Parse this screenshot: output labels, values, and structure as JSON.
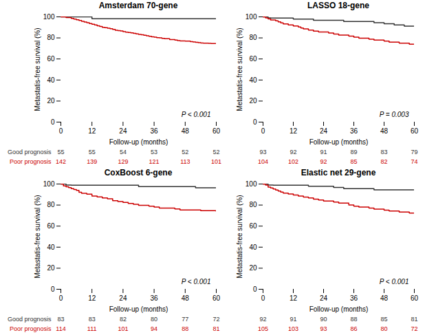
{
  "chart_data": [
    {
      "type": "step",
      "title": "Amsterdam 70-gene",
      "xlabel": "Follow-up (months)",
      "ylabel": "Metastatis-free survival (%)",
      "annotations": [
        "P < 0.001"
      ],
      "series": [
        {
          "color": "#333333",
          "x": [
            0,
            1,
            2,
            3,
            4,
            5,
            6,
            7,
            8,
            9,
            10,
            11,
            12,
            13,
            14,
            15,
            16,
            17,
            18,
            19,
            20,
            21,
            60
          ],
          "values": [
            100,
            100,
            100,
            100,
            100,
            100,
            100,
            100,
            100,
            100,
            100,
            100,
            98.2,
            98.2,
            98.2,
            98.2,
            98.2,
            98.2,
            98.2,
            98.2,
            98.2,
            98.2,
            98.2
          ]
        },
        {
          "color": "#cc0000",
          "x": [
            0,
            2,
            4,
            5,
            6,
            7,
            8,
            9,
            10,
            11,
            12,
            13,
            14,
            15,
            16,
            17,
            18,
            19,
            20,
            21,
            22,
            23,
            24,
            25,
            26,
            27,
            28,
            29,
            30,
            31,
            32,
            33,
            34,
            35,
            36,
            37,
            38,
            39,
            40,
            42,
            44,
            45,
            46,
            48,
            50,
            51,
            52,
            53,
            54,
            55,
            57,
            58,
            60
          ],
          "values": [
            100,
            99.3,
            98.6,
            97.9,
            97.2,
            96.5,
            95.8,
            95.1,
            94.4,
            93.7,
            93.0,
            92.3,
            91.5,
            90.8,
            90.1,
            89.7,
            89.2,
            88.7,
            88.0,
            87.3,
            87.0,
            86.6,
            86.0,
            85.5,
            85.2,
            84.8,
            84.3,
            83.8,
            83.3,
            83.0,
            82.5,
            82.0,
            81.5,
            81.0,
            80.8,
            80.3,
            80.0,
            79.5,
            79.3,
            78.5,
            78.0,
            77.5,
            77.2,
            76.9,
            76.5,
            76.2,
            75.8,
            75.5,
            75.2,
            75.0,
            74.8,
            74.6,
            74.6
          ]
        }
      ],
      "xlim": [
        0,
        60
      ],
      "ylim": [
        0,
        100
      ],
      "xticks": [
        0,
        12,
        24,
        36,
        48,
        60
      ],
      "yticks": [
        0,
        20,
        40,
        60,
        80,
        100
      ],
      "table": {
        "x": [
          0,
          12,
          24,
          36,
          48,
          60
        ],
        "rows": [
          {
            "label": "Good prognosis",
            "color": "#333333",
            "values": [
              55,
              55,
              54,
              53,
              52,
              52
            ]
          },
          {
            "label": "Poor prognosis",
            "color": "#cc0000",
            "values": [
              142,
              139,
              129,
              121,
              113,
              101
            ]
          }
        ]
      }
    },
    {
      "type": "step",
      "title": "LASSO 18-gene",
      "xlabel": "Follow-up (months)",
      "ylabel": "Metastatis-free survival (%)",
      "annotations": [
        "P = 0.003"
      ],
      "series": [
        {
          "color": "#333333",
          "x": [
            0,
            2,
            3,
            5,
            7,
            9,
            10,
            12,
            14,
            16,
            18,
            20,
            22,
            24,
            26,
            28,
            30,
            32,
            34,
            36,
            38,
            40,
            42,
            44,
            46,
            48,
            50,
            52,
            54,
            56,
            58,
            60
          ],
          "values": [
            100,
            99.0,
            98.9,
            98.9,
            98.9,
            98.9,
            98.9,
            97.8,
            97.8,
            97.8,
            97.8,
            96.7,
            96.7,
            96.7,
            96.7,
            96.7,
            96.7,
            95.6,
            95.6,
            95.6,
            95.6,
            95.6,
            95.6,
            94.5,
            94.5,
            93.4,
            93.4,
            92.3,
            92.3,
            91.2,
            91.2,
            91.2
          ]
        },
        {
          "color": "#cc0000",
          "x": [
            0,
            1,
            2,
            3,
            5,
            6,
            7,
            8,
            10,
            12,
            14,
            15,
            16,
            18,
            20,
            22,
            24,
            26,
            28,
            30,
            32,
            34,
            36,
            38,
            40,
            42,
            44,
            46,
            48,
            50,
            52,
            54,
            56,
            58,
            60
          ],
          "values": [
            100,
            99.0,
            98.1,
            97.1,
            96.2,
            95.2,
            94.2,
            93.3,
            92.3,
            91.3,
            90.4,
            89.4,
            88.5,
            87.5,
            86.5,
            85.6,
            85.6,
            84.6,
            83.7,
            82.7,
            82.7,
            81.7,
            80.8,
            79.8,
            79.8,
            78.8,
            77.9,
            77.9,
            76.9,
            76.0,
            76.0,
            75.0,
            75.0,
            74.0,
            74.0
          ]
        }
      ],
      "xlim": [
        0,
        60
      ],
      "ylim": [
        0,
        100
      ],
      "xticks": [
        0,
        12,
        24,
        36,
        48,
        60
      ],
      "yticks": [
        0,
        20,
        40,
        60,
        80,
        100
      ],
      "table": {
        "x": [
          0,
          12,
          24,
          36,
          48,
          60
        ],
        "rows": [
          {
            "color": "#333333",
            "values": [
              93,
              92,
              91,
              89,
              83,
              79
            ]
          },
          {
            "color": "#cc0000",
            "values": [
              104,
              102,
              92,
              85,
              82,
              74
            ]
          }
        ]
      }
    },
    {
      "type": "step",
      "title": "CoxBoost 6-gene",
      "xlabel": "Follow-up (months)",
      "ylabel": "Metastatis-free survival (%)",
      "annotations": [
        "P < 0.001"
      ],
      "series": [
        {
          "color": "#333333",
          "x": [
            0,
            2,
            4,
            6,
            8,
            10,
            12,
            14,
            16,
            18,
            20,
            22,
            24,
            26,
            28,
            30,
            32,
            34,
            36,
            38,
            40,
            42,
            44,
            46,
            48,
            50,
            52,
            54,
            56,
            58,
            60
          ],
          "values": [
            100,
            99.0,
            98.8,
            98.8,
            98.8,
            98.8,
            98.8,
            98.8,
            98.8,
            98.8,
            98.8,
            98.8,
            98.8,
            98.8,
            98.8,
            97.6,
            97.6,
            97.6,
            97.6,
            97.6,
            97.6,
            97.6,
            97.6,
            97.6,
            97.6,
            97.6,
            96.4,
            96.4,
            96.4,
            96.4,
            96.4
          ]
        },
        {
          "color": "#cc0000",
          "x": [
            0,
            1,
            2,
            3,
            4,
            5,
            6,
            7,
            8,
            10,
            12,
            14,
            16,
            18,
            20,
            22,
            24,
            26,
            28,
            30,
            32,
            34,
            36,
            38,
            40,
            42,
            44,
            46,
            48,
            50,
            52,
            54,
            56,
            58,
            60
          ],
          "values": [
            100,
            98.2,
            97.4,
            96.5,
            95.6,
            94.7,
            93.9,
            92.1,
            91.2,
            90.4,
            88.6,
            87.7,
            86.8,
            86.0,
            84.2,
            83.3,
            82.5,
            81.6,
            80.7,
            79.8,
            79.8,
            78.9,
            78.1,
            77.2,
            77.2,
            77.2,
            76.3,
            75.4,
            75.4,
            75.4,
            75.4,
            74.6,
            74.6,
            74.6,
            73.7
          ]
        }
      ],
      "xlim": [
        0,
        60
      ],
      "ylim": [
        0,
        100
      ],
      "xticks": [
        0,
        12,
        24,
        36,
        48,
        60
      ],
      "yticks": [
        0,
        20,
        40,
        60,
        80,
        100
      ],
      "table": {
        "x": [
          0,
          12,
          24,
          36,
          48,
          60
        ],
        "rows": [
          {
            "label": "Good prognosis",
            "color": "#333333",
            "values": [
              83,
              83,
              82,
              80,
              77,
              72
            ]
          },
          {
            "label": "Poor prognosis",
            "color": "#cc0000",
            "values": [
              114,
              111,
              101,
              94,
              88,
              81
            ]
          }
        ]
      }
    },
    {
      "type": "step",
      "title": "Elastic net 29-gene",
      "xlabel": "Follow-up (months)",
      "ylabel": "Metastatis-free survival (%)",
      "annotations": [
        "P < 0.001"
      ],
      "series": [
        {
          "color": "#333333",
          "x": [
            0,
            2,
            4,
            6,
            8,
            10,
            12,
            14,
            16,
            18,
            20,
            22,
            24,
            26,
            28,
            30,
            32,
            34,
            36,
            38,
            40,
            42,
            44,
            46,
            48,
            50,
            52,
            54,
            56,
            58,
            60
          ],
          "values": [
            100,
            99.0,
            98.9,
            98.9,
            98.9,
            98.9,
            98.9,
            98.9,
            98.9,
            97.8,
            97.8,
            97.8,
            97.8,
            97.8,
            96.7,
            96.7,
            95.6,
            95.6,
            95.6,
            95.6,
            95.6,
            95.6,
            94.5,
            94.5,
            94.5,
            94.5,
            94.5,
            94.5,
            94.5,
            94.5,
            94.5
          ]
        },
        {
          "color": "#cc0000",
          "x": [
            0,
            1,
            2,
            3,
            4,
            5,
            6,
            7,
            8,
            10,
            12,
            14,
            16,
            18,
            20,
            22,
            24,
            26,
            28,
            30,
            32,
            34,
            36,
            38,
            40,
            42,
            44,
            46,
            48,
            50,
            52,
            54,
            56,
            58,
            60
          ],
          "values": [
            100,
            99.0,
            97.1,
            96.2,
            95.2,
            94.3,
            93.3,
            92.4,
            91.4,
            90.5,
            89.5,
            88.6,
            87.6,
            86.7,
            85.7,
            84.8,
            83.8,
            83.8,
            82.9,
            81.9,
            81.9,
            80.0,
            79.0,
            78.1,
            78.1,
            77.1,
            76.2,
            76.2,
            75.2,
            74.3,
            74.3,
            73.3,
            73.3,
            72.4,
            72.4
          ]
        }
      ],
      "xlim": [
        0,
        60
      ],
      "ylim": [
        0,
        100
      ],
      "xticks": [
        0,
        12,
        24,
        36,
        48,
        60
      ],
      "yticks": [
        0,
        20,
        40,
        60,
        80,
        100
      ],
      "table": {
        "x": [
          0,
          12,
          24,
          36,
          48,
          60
        ],
        "rows": [
          {
            "color": "#333333",
            "values": [
              92,
              91,
              90,
              88,
              85,
              81
            ]
          },
          {
            "color": "#cc0000",
            "values": [
              105,
              103,
              93,
              86,
              80,
              72
            ]
          }
        ]
      }
    }
  ]
}
